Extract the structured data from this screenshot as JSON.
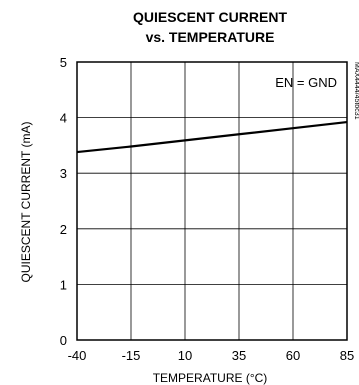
{
  "chart_data": {
    "type": "line",
    "title_line1": "QUIESCENT CURRENT",
    "title_line2": "vs. TEMPERATURE",
    "xlabel": "TEMPERATURE (°C)",
    "ylabel": "QUIESCENT CURRENT (mA)",
    "xlim": [
      -40,
      85
    ],
    "ylim": [
      0,
      5
    ],
    "xticks": [
      -40,
      -15,
      10,
      35,
      60,
      85
    ],
    "yticks": [
      0,
      1,
      2,
      3,
      4,
      5
    ],
    "grid": true,
    "annotation": "EN = GND",
    "figure_id": "MAX4444/45toc31",
    "series": [
      {
        "x": [
          -40,
          -15,
          10,
          35,
          60,
          85
        ],
        "y": [
          3.38,
          3.48,
          3.59,
          3.7,
          3.81,
          3.92
        ]
      }
    ]
  },
  "colors": {
    "line": "#000000",
    "grid": "#000000",
    "background": "#ffffff"
  }
}
